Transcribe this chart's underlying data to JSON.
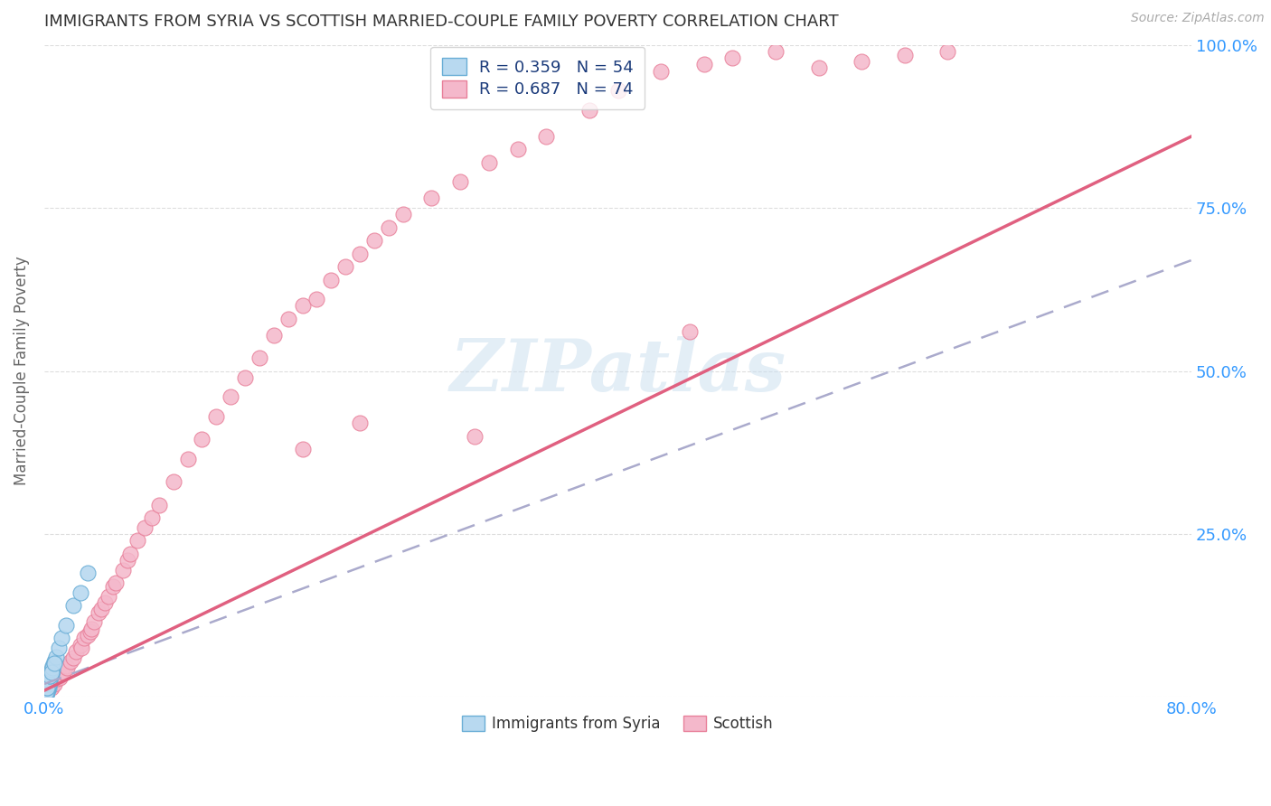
{
  "title": "IMMIGRANTS FROM SYRIA VS SCOTTISH MARRIED-COUPLE FAMILY POVERTY CORRELATION CHART",
  "source": "Source: ZipAtlas.com",
  "ylabel": "Married-Couple Family Poverty",
  "xlim": [
    0.0,
    0.8
  ],
  "ylim": [
    0.0,
    1.0
  ],
  "xticks": [
    0.0,
    0.1,
    0.2,
    0.3,
    0.4,
    0.5,
    0.6,
    0.7,
    0.8
  ],
  "xtick_labels": [
    "0.0%",
    "",
    "",
    "",
    "",
    "",
    "",
    "",
    "80.0%"
  ],
  "yticks": [
    0.0,
    0.25,
    0.5,
    0.75,
    1.0
  ],
  "ytick_labels_right": [
    "",
    "25.0%",
    "50.0%",
    "75.0%",
    "100.0%"
  ],
  "series1_name": "Immigrants from Syria",
  "series1_R": 0.359,
  "series1_N": 54,
  "series1_color": "#b8d9f0",
  "series1_edge_color": "#6aaed6",
  "series1_line_color": "#aaaacc",
  "series2_name": "Scottish",
  "series2_R": 0.687,
  "series2_N": 74,
  "series2_color": "#f4b8cb",
  "series2_edge_color": "#e8809a",
  "series2_line_color": "#e06080",
  "background_color": "#ffffff",
  "grid_color": "#dddddd",
  "watermark": "ZIPatlas",
  "series1_x": [
    0.001,
    0.002,
    0.001,
    0.003,
    0.001,
    0.002,
    0.001,
    0.002,
    0.003,
    0.001,
    0.002,
    0.001,
    0.003,
    0.002,
    0.001,
    0.002,
    0.003,
    0.001,
    0.002,
    0.001,
    0.004,
    0.002,
    0.001,
    0.003,
    0.002,
    0.004,
    0.003,
    0.001,
    0.002,
    0.003,
    0.005,
    0.004,
    0.003,
    0.006,
    0.004,
    0.005,
    0.003,
    0.002,
    0.004,
    0.005,
    0.006,
    0.004,
    0.005,
    0.007,
    0.006,
    0.005,
    0.008,
    0.007,
    0.01,
    0.012,
    0.015,
    0.02,
    0.025,
    0.03
  ],
  "series1_y": [
    0.005,
    0.01,
    0.008,
    0.015,
    0.003,
    0.008,
    0.006,
    0.012,
    0.018,
    0.004,
    0.01,
    0.007,
    0.02,
    0.013,
    0.005,
    0.009,
    0.022,
    0.006,
    0.011,
    0.004,
    0.025,
    0.015,
    0.008,
    0.028,
    0.016,
    0.03,
    0.022,
    0.007,
    0.014,
    0.024,
    0.035,
    0.028,
    0.02,
    0.042,
    0.03,
    0.038,
    0.025,
    0.015,
    0.032,
    0.04,
    0.048,
    0.033,
    0.042,
    0.055,
    0.045,
    0.038,
    0.062,
    0.052,
    0.075,
    0.09,
    0.11,
    0.14,
    0.16,
    0.19
  ],
  "series2_x": [
    0.001,
    0.002,
    0.003,
    0.004,
    0.005,
    0.006,
    0.007,
    0.008,
    0.009,
    0.01,
    0.011,
    0.012,
    0.013,
    0.015,
    0.016,
    0.018,
    0.02,
    0.022,
    0.025,
    0.026,
    0.028,
    0.03,
    0.032,
    0.033,
    0.035,
    0.038,
    0.04,
    0.042,
    0.045,
    0.048,
    0.05,
    0.055,
    0.058,
    0.06,
    0.065,
    0.07,
    0.075,
    0.08,
    0.09,
    0.1,
    0.11,
    0.12,
    0.13,
    0.14,
    0.15,
    0.16,
    0.17,
    0.18,
    0.19,
    0.2,
    0.21,
    0.22,
    0.23,
    0.24,
    0.25,
    0.27,
    0.29,
    0.31,
    0.33,
    0.35,
    0.38,
    0.4,
    0.43,
    0.46,
    0.48,
    0.51,
    0.54,
    0.57,
    0.6,
    0.63,
    0.18,
    0.22,
    0.3,
    0.45
  ],
  "series2_y": [
    0.008,
    0.012,
    0.018,
    0.022,
    0.015,
    0.025,
    0.02,
    0.03,
    0.028,
    0.035,
    0.03,
    0.04,
    0.038,
    0.048,
    0.045,
    0.055,
    0.06,
    0.07,
    0.08,
    0.075,
    0.09,
    0.095,
    0.1,
    0.105,
    0.115,
    0.13,
    0.135,
    0.145,
    0.155,
    0.17,
    0.175,
    0.195,
    0.21,
    0.22,
    0.24,
    0.26,
    0.275,
    0.295,
    0.33,
    0.365,
    0.395,
    0.43,
    0.46,
    0.49,
    0.52,
    0.555,
    0.58,
    0.6,
    0.61,
    0.64,
    0.66,
    0.68,
    0.7,
    0.72,
    0.74,
    0.765,
    0.79,
    0.82,
    0.84,
    0.86,
    0.9,
    0.93,
    0.96,
    0.97,
    0.98,
    0.99,
    0.965,
    0.975,
    0.985,
    0.99,
    0.38,
    0.42,
    0.4,
    0.56
  ],
  "line1_x0": 0.0,
  "line1_y0": 0.02,
  "line1_x1": 0.8,
  "line1_y1": 0.67,
  "line2_x0": 0.0,
  "line2_y0": 0.01,
  "line2_x1": 0.8,
  "line2_y1": 0.86
}
